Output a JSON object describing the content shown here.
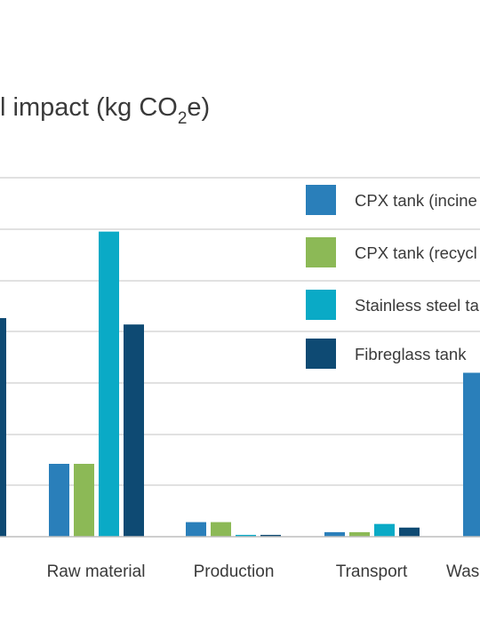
{
  "chart_data": {
    "type": "bar",
    "title_main": "l impact (kg CO",
    "title_sub": "2",
    "title_end": "e)",
    "categories": [
      "",
      "Raw material",
      "Production",
      "Transport",
      "Was"
    ],
    "series": [
      {
        "name": "CPX tank (incine",
        "color": "#2a7fba",
        "values": [
          null,
          80,
          16,
          5,
          180
        ]
      },
      {
        "name": "CPX tank (recycl",
        "color": "#8cb956",
        "values": [
          null,
          80,
          16,
          5,
          null
        ]
      },
      {
        "name": "Stainless steel ta",
        "color": "#0aaac6",
        "values": [
          null,
          335,
          2,
          14,
          null
        ]
      },
      {
        "name": "Fibreglass tank",
        "color": "#0e4a73",
        "values": [
          240,
          233,
          2,
          10,
          null
        ]
      }
    ],
    "ylim": [
      0,
      400
    ],
    "grid": true,
    "legend": "top-right"
  }
}
